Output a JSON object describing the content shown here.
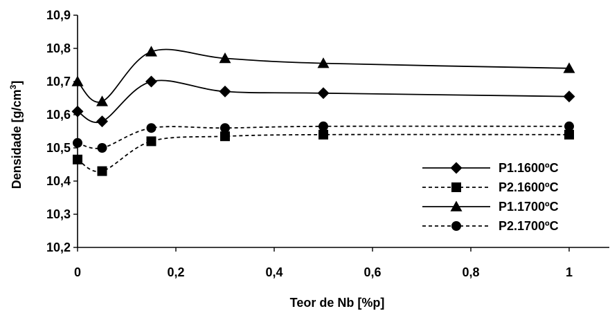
{
  "chart_data": {
    "type": "line",
    "title": "",
    "xlabel": "Teor de Nb [%p]",
    "ylabel_main": "Densidade [g/cm",
    "ylabel_sup": "3",
    "ylabel_end": "]",
    "xlim": [
      0,
      1.0
    ],
    "ylim": [
      10.2,
      10.9
    ],
    "x_ticks": [
      0,
      0.2,
      0.4,
      0.6,
      0.8,
      1.0
    ],
    "x_tick_labels": [
      "0",
      "0,2",
      "0,4",
      "0,6",
      "0,8",
      "1"
    ],
    "y_ticks": [
      10.2,
      10.3,
      10.4,
      10.5,
      10.6,
      10.7,
      10.8,
      10.9
    ],
    "y_tick_labels": [
      "10,2",
      "10,3",
      "10,4",
      "10,5",
      "10,6",
      "10,7",
      "10,8",
      "10,9"
    ],
    "grid": false,
    "legend_position": "right",
    "series": [
      {
        "name": "P1.1600ºC",
        "marker": "diamond",
        "line_style": "solid",
        "color": "#000000",
        "x": [
          0,
          0.05,
          0.15,
          0.3,
          0.5,
          1.0
        ],
        "y": [
          10.61,
          10.58,
          10.7,
          10.67,
          10.665,
          10.655
        ]
      },
      {
        "name": "P2.1600ºC",
        "marker": "square",
        "line_style": "dashed",
        "color": "#000000",
        "x": [
          0,
          0.05,
          0.15,
          0.3,
          0.5,
          1.0
        ],
        "y": [
          10.465,
          10.43,
          10.52,
          10.535,
          10.54,
          10.54
        ]
      },
      {
        "name": "P1.1700ºC",
        "marker": "triangle",
        "line_style": "solid",
        "color": "#000000",
        "x": [
          0,
          0.05,
          0.15,
          0.3,
          0.5,
          1.0
        ],
        "y": [
          10.7,
          10.64,
          10.79,
          10.77,
          10.755,
          10.74
        ]
      },
      {
        "name": "P2.1700ºC",
        "marker": "circle",
        "line_style": "dashed",
        "color": "#000000",
        "x": [
          0,
          0.05,
          0.15,
          0.3,
          0.5,
          1.0
        ],
        "y": [
          10.515,
          10.5,
          10.56,
          10.56,
          10.565,
          10.565
        ]
      }
    ]
  }
}
